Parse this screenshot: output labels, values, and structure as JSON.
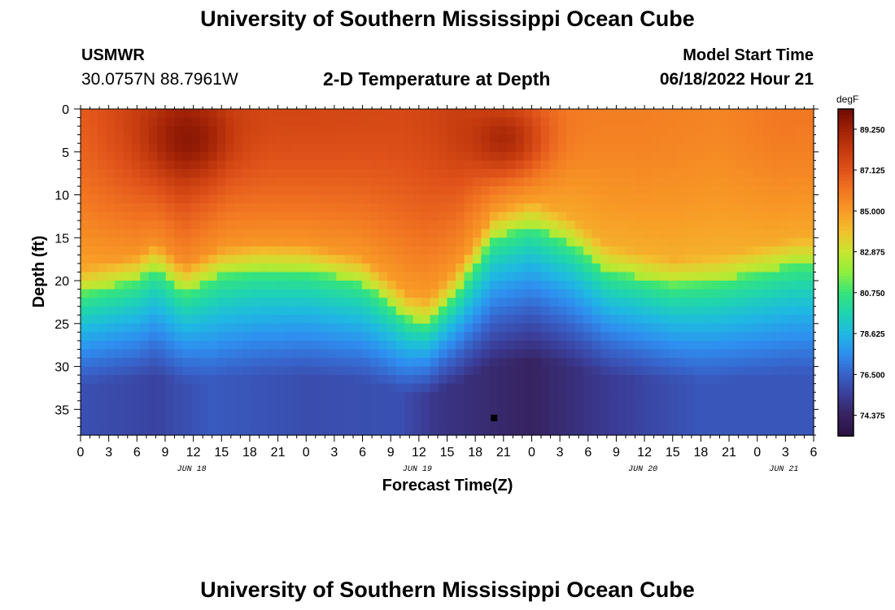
{
  "page": {
    "title_top": "University of Southern Mississippi Ocean Cube",
    "title_bottom": "University of Southern Mississippi Ocean Cube",
    "station": "USMWR",
    "coords": "30.0757N  88.7961W",
    "subtitle": "2-D Temperature at Depth",
    "model_start_label": "Model Start Time",
    "model_start_value": "06/18/2022 Hour 21"
  },
  "chart_data": {
    "type": "heatmap",
    "title": "2-D Temperature at Depth",
    "xlabel": "Forecast Time(Z)",
    "ylabel": "Depth (ft)",
    "x_range_hours": [
      0,
      78
    ],
    "y_range_ft": [
      0,
      38
    ],
    "x_tick_labels": [
      "0",
      "3",
      "6",
      "9",
      "12",
      "15",
      "18",
      "21",
      "0",
      "3",
      "6",
      "9",
      "12",
      "15",
      "18",
      "21",
      "0",
      "3",
      "6",
      "9",
      "12",
      "15",
      "18",
      "21",
      "0",
      "3",
      "6"
    ],
    "y_tick_labels": [
      "0",
      "5",
      "10",
      "15",
      "20",
      "25",
      "30",
      "35"
    ],
    "y_tick_values": [
      0,
      5,
      10,
      15,
      20,
      25,
      30,
      35
    ],
    "date_labels": [
      {
        "text": "JUN 18",
        "hour": 12
      },
      {
        "text": "JUN 19",
        "hour": 36
      },
      {
        "text": "JUN 20",
        "hour": 60
      },
      {
        "text": "JUN 21",
        "hour": 75
      }
    ],
    "colorbar": {
      "unit": "degF",
      "min": 73.3,
      "max": 90.3,
      "labels": [
        "89.250",
        "87.125",
        "85.000",
        "82.875",
        "80.750",
        "78.625",
        "76.500",
        "74.375"
      ],
      "label_values": [
        89.25,
        87.125,
        85.0,
        82.875,
        80.75,
        78.625,
        76.5,
        74.375
      ],
      "colors": [
        "#2b1142",
        "#36225e",
        "#3b3d98",
        "#3861c8",
        "#2f8ef0",
        "#1fb8e3",
        "#1fd4b0",
        "#36e47a",
        "#8ef03c",
        "#c7e531",
        "#f2c12e",
        "#f89a26",
        "#f27622",
        "#e0521a",
        "#c43a0e",
        "#9f2106",
        "#6e0b02"
      ]
    },
    "thermocline_depth_by_hour": [
      [
        0,
        21.5
      ],
      [
        6,
        20.0
      ],
      [
        8,
        18.5
      ],
      [
        11,
        21.2
      ],
      [
        15,
        19.2
      ],
      [
        19,
        18.6
      ],
      [
        24,
        18.8
      ],
      [
        30,
        20.2
      ],
      [
        35,
        24.5
      ],
      [
        37,
        25.0
      ],
      [
        40,
        21.5
      ],
      [
        44,
        15.0
      ],
      [
        48,
        13.5
      ],
      [
        52,
        15.5
      ],
      [
        56,
        18.8
      ],
      [
        63,
        20.5
      ],
      [
        68,
        20.0
      ],
      [
        72,
        19.0
      ],
      [
        76,
        18.0
      ],
      [
        78,
        18.0
      ]
    ],
    "surface_temp_by_hour": [
      [
        0,
        86.8
      ],
      [
        6,
        87.8
      ],
      [
        11,
        88.5
      ],
      [
        16,
        87.6
      ],
      [
        24,
        87.6
      ],
      [
        34,
        87.5
      ],
      [
        40,
        87.8
      ],
      [
        46,
        86.2
      ],
      [
        52,
        85.8
      ],
      [
        60,
        85.8
      ],
      [
        68,
        85.6
      ],
      [
        74,
        86.0
      ],
      [
        78,
        86.0
      ]
    ],
    "warm_cores": [
      {
        "hour": 11.5,
        "depth_ft": 3.5,
        "temp": 89.8
      },
      {
        "hour": 45.0,
        "depth_ft": 3.5,
        "temp": 89.2
      }
    ],
    "bottom_temp_by_hour": [
      [
        0,
        76.0
      ],
      [
        8,
        75.6
      ],
      [
        14,
        76.3
      ],
      [
        24,
        75.9
      ],
      [
        34,
        76.0
      ],
      [
        38,
        75.1
      ],
      [
        48,
        74.4
      ],
      [
        56,
        75.3
      ],
      [
        66,
        76.2
      ],
      [
        78,
        76.2
      ]
    ],
    "marker": {
      "hour": 44.0,
      "depth_ft": 36.0
    }
  }
}
